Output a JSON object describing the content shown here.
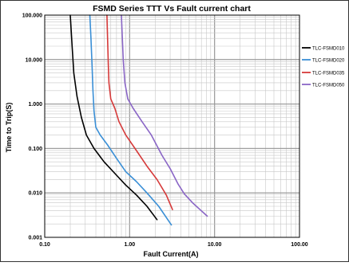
{
  "chart_data": {
    "type": "line",
    "title": "FSMD Series TTT Vs Fault current chart",
    "xlabel": "Fault Current(A)",
    "ylabel": "Time to Trip(S)",
    "xscale": "log",
    "yscale": "log",
    "xlim": [
      0.1,
      100
    ],
    "ylim": [
      0.001,
      100
    ],
    "x_ticks": [
      "0.10",
      "1.00",
      "10.00",
      "100.00"
    ],
    "y_ticks": [
      "0.001",
      "0.010",
      "0.100",
      "1.000",
      "10.000",
      "100.000"
    ],
    "grid": true,
    "legend_position": "right",
    "series": [
      {
        "name": "TLC-FSMD010",
        "color": "#000000",
        "points": [
          [
            0.2,
            100
          ],
          [
            0.21,
            20
          ],
          [
            0.22,
            5
          ],
          [
            0.24,
            1.5
          ],
          [
            0.27,
            0.5
          ],
          [
            0.31,
            0.2
          ],
          [
            0.38,
            0.1
          ],
          [
            0.5,
            0.05
          ],
          [
            0.7,
            0.025
          ],
          [
            0.9,
            0.015
          ],
          [
            1.2,
            0.009
          ],
          [
            1.6,
            0.005
          ],
          [
            2.1,
            0.0025
          ]
        ]
      },
      {
        "name": "TLC-FSMD020",
        "color": "#3a8fd6",
        "points": [
          [
            0.34,
            100
          ],
          [
            0.35,
            30
          ],
          [
            0.36,
            8
          ],
          [
            0.37,
            2
          ],
          [
            0.38,
            0.7
          ],
          [
            0.4,
            0.3
          ],
          [
            0.45,
            0.2
          ],
          [
            0.55,
            0.12
          ],
          [
            0.7,
            0.06
          ],
          [
            0.9,
            0.03
          ],
          [
            1.2,
            0.018
          ],
          [
            1.6,
            0.01
          ],
          [
            2.2,
            0.005
          ],
          [
            3.1,
            0.0019
          ]
        ]
      },
      {
        "name": "TLC-FSMD035",
        "color": "#d63a3a",
        "points": [
          [
            0.54,
            100
          ],
          [
            0.55,
            30
          ],
          [
            0.56,
            8
          ],
          [
            0.57,
            3
          ],
          [
            0.6,
            1.3
          ],
          [
            0.67,
            0.8
          ],
          [
            0.75,
            0.4
          ],
          [
            0.9,
            0.2
          ],
          [
            1.2,
            0.09
          ],
          [
            1.6,
            0.04
          ],
          [
            2.1,
            0.02
          ],
          [
            2.7,
            0.009
          ],
          [
            3.2,
            0.0042
          ]
        ]
      },
      {
        "name": "TLC-FSMD050",
        "color": "#8a66c6",
        "points": [
          [
            0.8,
            100
          ],
          [
            0.82,
            30
          ],
          [
            0.84,
            10
          ],
          [
            0.88,
            3
          ],
          [
            0.95,
            1.3
          ],
          [
            1.1,
            0.8
          ],
          [
            1.4,
            0.4
          ],
          [
            1.8,
            0.2
          ],
          [
            2.4,
            0.07
          ],
          [
            3.0,
            0.035
          ],
          [
            3.7,
            0.016
          ],
          [
            4.4,
            0.0095
          ],
          [
            5.5,
            0.006
          ],
          [
            8.2,
            0.003
          ]
        ]
      }
    ]
  }
}
